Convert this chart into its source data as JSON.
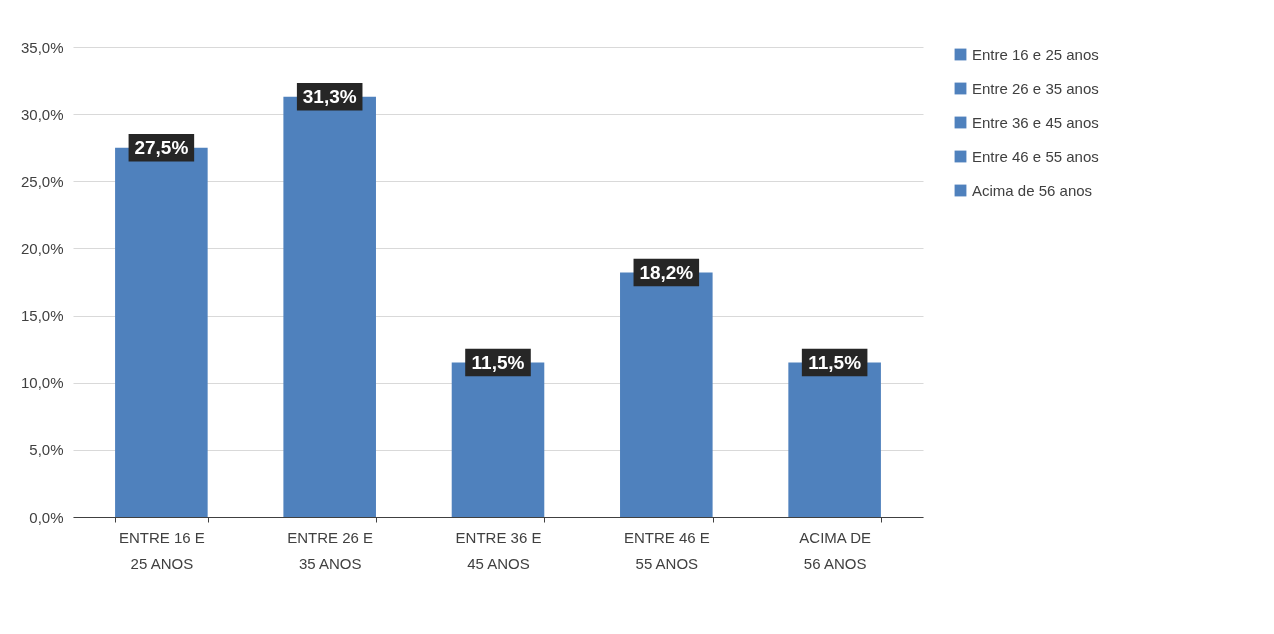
{
  "chart_data": {
    "type": "bar",
    "stacked": true,
    "categories": [
      "ENTRE 16 E 25 ANOS",
      "ENTRE 26 E 35 ANOS",
      "ENTRE 36 E 45 ANOS",
      "ENTRE 46 E 55 ANOS",
      "ACIMA DE 56 ANOS"
    ],
    "series": [
      {
        "name": "Entre 16 e 25 anos",
        "color": "#4f81bd",
        "values": [
          27.5,
          null,
          null,
          null,
          null
        ],
        "value_labels": [
          "27,5%",
          null,
          null,
          null,
          null
        ]
      },
      {
        "name": "Entre 26 e 35 anos",
        "color": "#4f81bd",
        "values": [
          null,
          31.3,
          null,
          null,
          null
        ],
        "value_labels": [
          null,
          "31,3%",
          null,
          null,
          null
        ]
      },
      {
        "name": "Entre 36 e 45 anos",
        "color": "#4f81bd",
        "values": [
          null,
          null,
          11.5,
          null,
          null
        ],
        "value_labels": [
          null,
          null,
          "11,5%",
          null,
          null
        ]
      },
      {
        "name": "Entre 46 e 55 anos",
        "color": "#4f81bd",
        "values": [
          null,
          null,
          null,
          18.2,
          null
        ],
        "value_labels": [
          null,
          null,
          null,
          "18,2%",
          null
        ]
      },
      {
        "name": "Acima de 56 anos",
        "color": "#4f81bd",
        "values": [
          null,
          null,
          null,
          null,
          11.5
        ],
        "value_labels": [
          null,
          null,
          null,
          null,
          "11,5%"
        ]
      }
    ],
    "ylim": [
      0,
      35
    ],
    "yticks": [
      {
        "value": 0,
        "label": "0,0%"
      },
      {
        "value": 5,
        "label": "5,0%"
      },
      {
        "value": 10,
        "label": "10,0%"
      },
      {
        "value": 15,
        "label": "15,0%"
      },
      {
        "value": 20,
        "label": "20,0%"
      },
      {
        "value": 25,
        "label": "25,0%"
      },
      {
        "value": 30,
        "label": "30,0%"
      },
      {
        "value": 35,
        "label": "35,0%"
      }
    ],
    "grid": "y",
    "legend": "right"
  }
}
